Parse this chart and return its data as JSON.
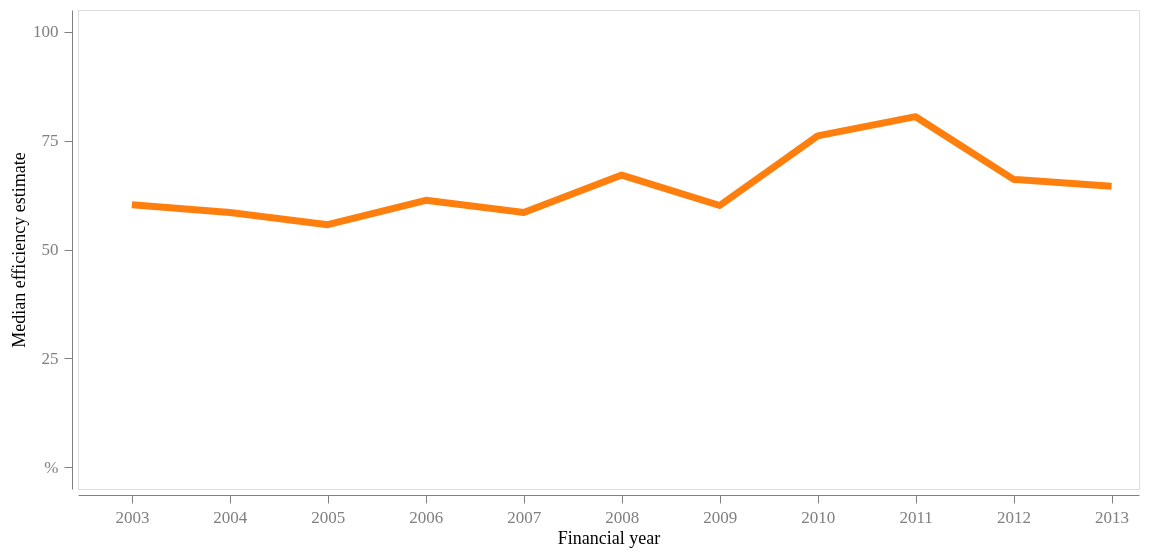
{
  "chart_data": {
    "type": "line",
    "xlabel": "Financial year",
    "ylabel": "Median efficiency estimate",
    "x": [
      2003,
      2004,
      2005,
      2006,
      2007,
      2008,
      2009,
      2010,
      2011,
      2012,
      2013
    ],
    "series": [
      {
        "color": "#ff7f0e",
        "values": [
          60.3,
          58.5,
          55.7,
          61.3,
          58.5,
          67.1,
          60.1,
          76.1,
          80.5,
          66.1,
          64.5
        ]
      }
    ],
    "xlim": [
      2002.45,
      2013.28
    ],
    "xticks": [
      2003,
      2004,
      2005,
      2006,
      2007,
      2008,
      2009,
      2010,
      2011,
      2012,
      2013
    ],
    "ylim": [
      -5,
      105
    ],
    "yticks": [
      {
        "value": 0,
        "label": "%"
      },
      25,
      50,
      75,
      100
    ],
    "grid": false,
    "marker": "none",
    "line_style": "solid"
  }
}
